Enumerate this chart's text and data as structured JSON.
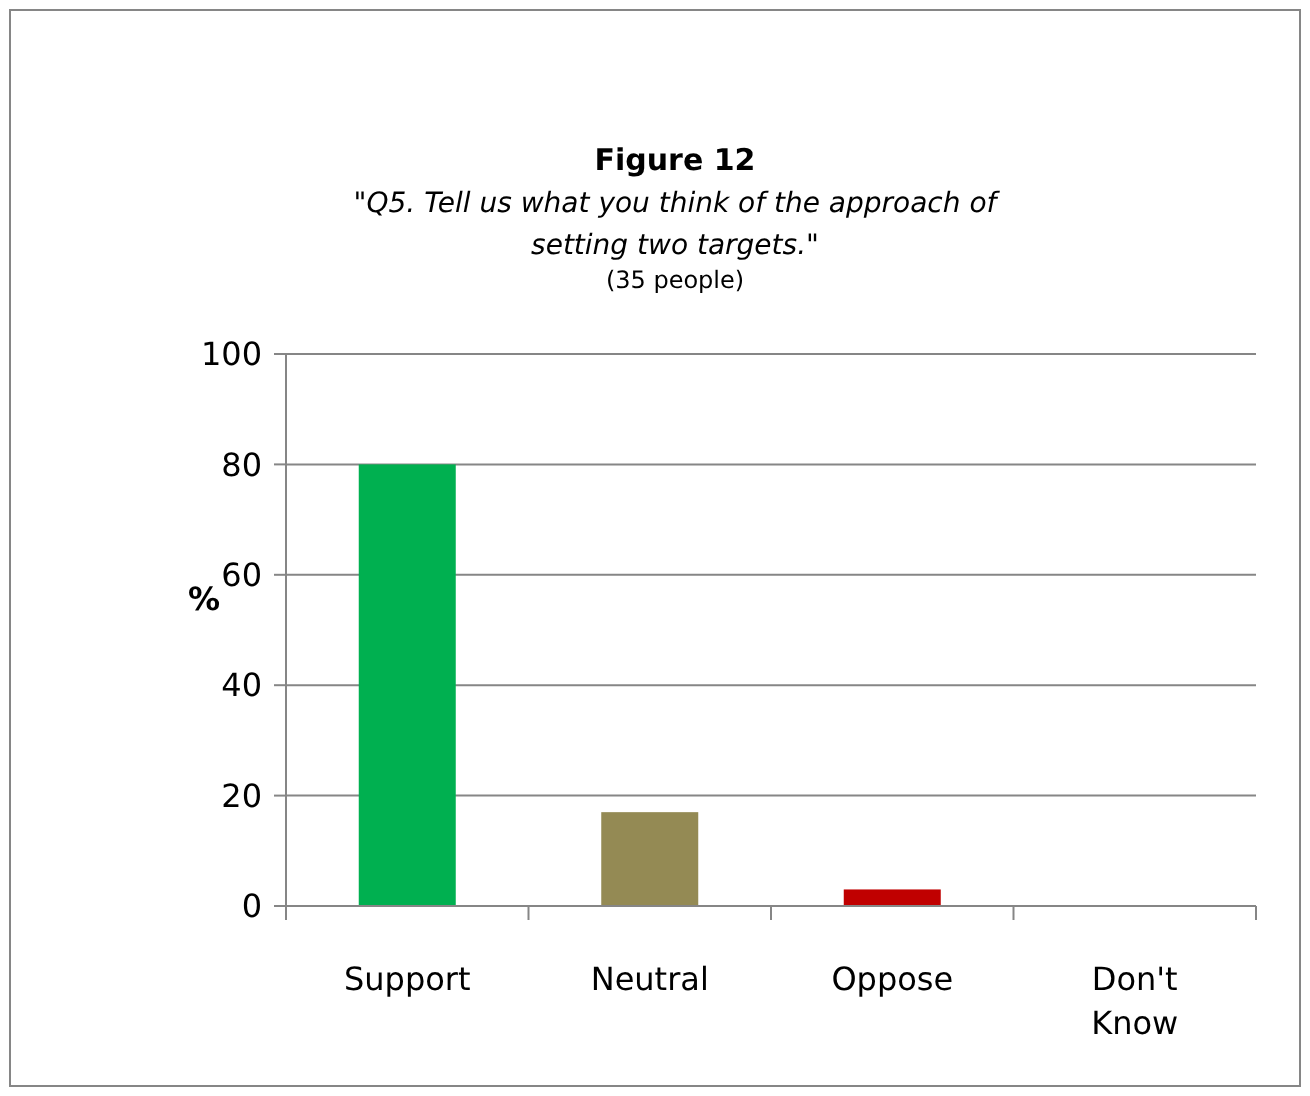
{
  "chart_data": {
    "type": "bar",
    "title": "Figure 12",
    "subtitle": "\"Q5. Tell us what you think of the approach of setting two targets.\"",
    "annotations": [
      "(35 people)"
    ],
    "ylabel": "%",
    "categories": [
      "Support",
      "Neutral",
      "Oppose",
      "Don't Know"
    ],
    "values": [
      80,
      17,
      3,
      0
    ],
    "colors": [
      "#00b050",
      "#948a54",
      "#c00000",
      "#4f81bd"
    ],
    "ylim": [
      0,
      100
    ],
    "yticks": [
      0,
      20,
      40,
      60,
      80,
      100
    ],
    "grid": "y"
  }
}
